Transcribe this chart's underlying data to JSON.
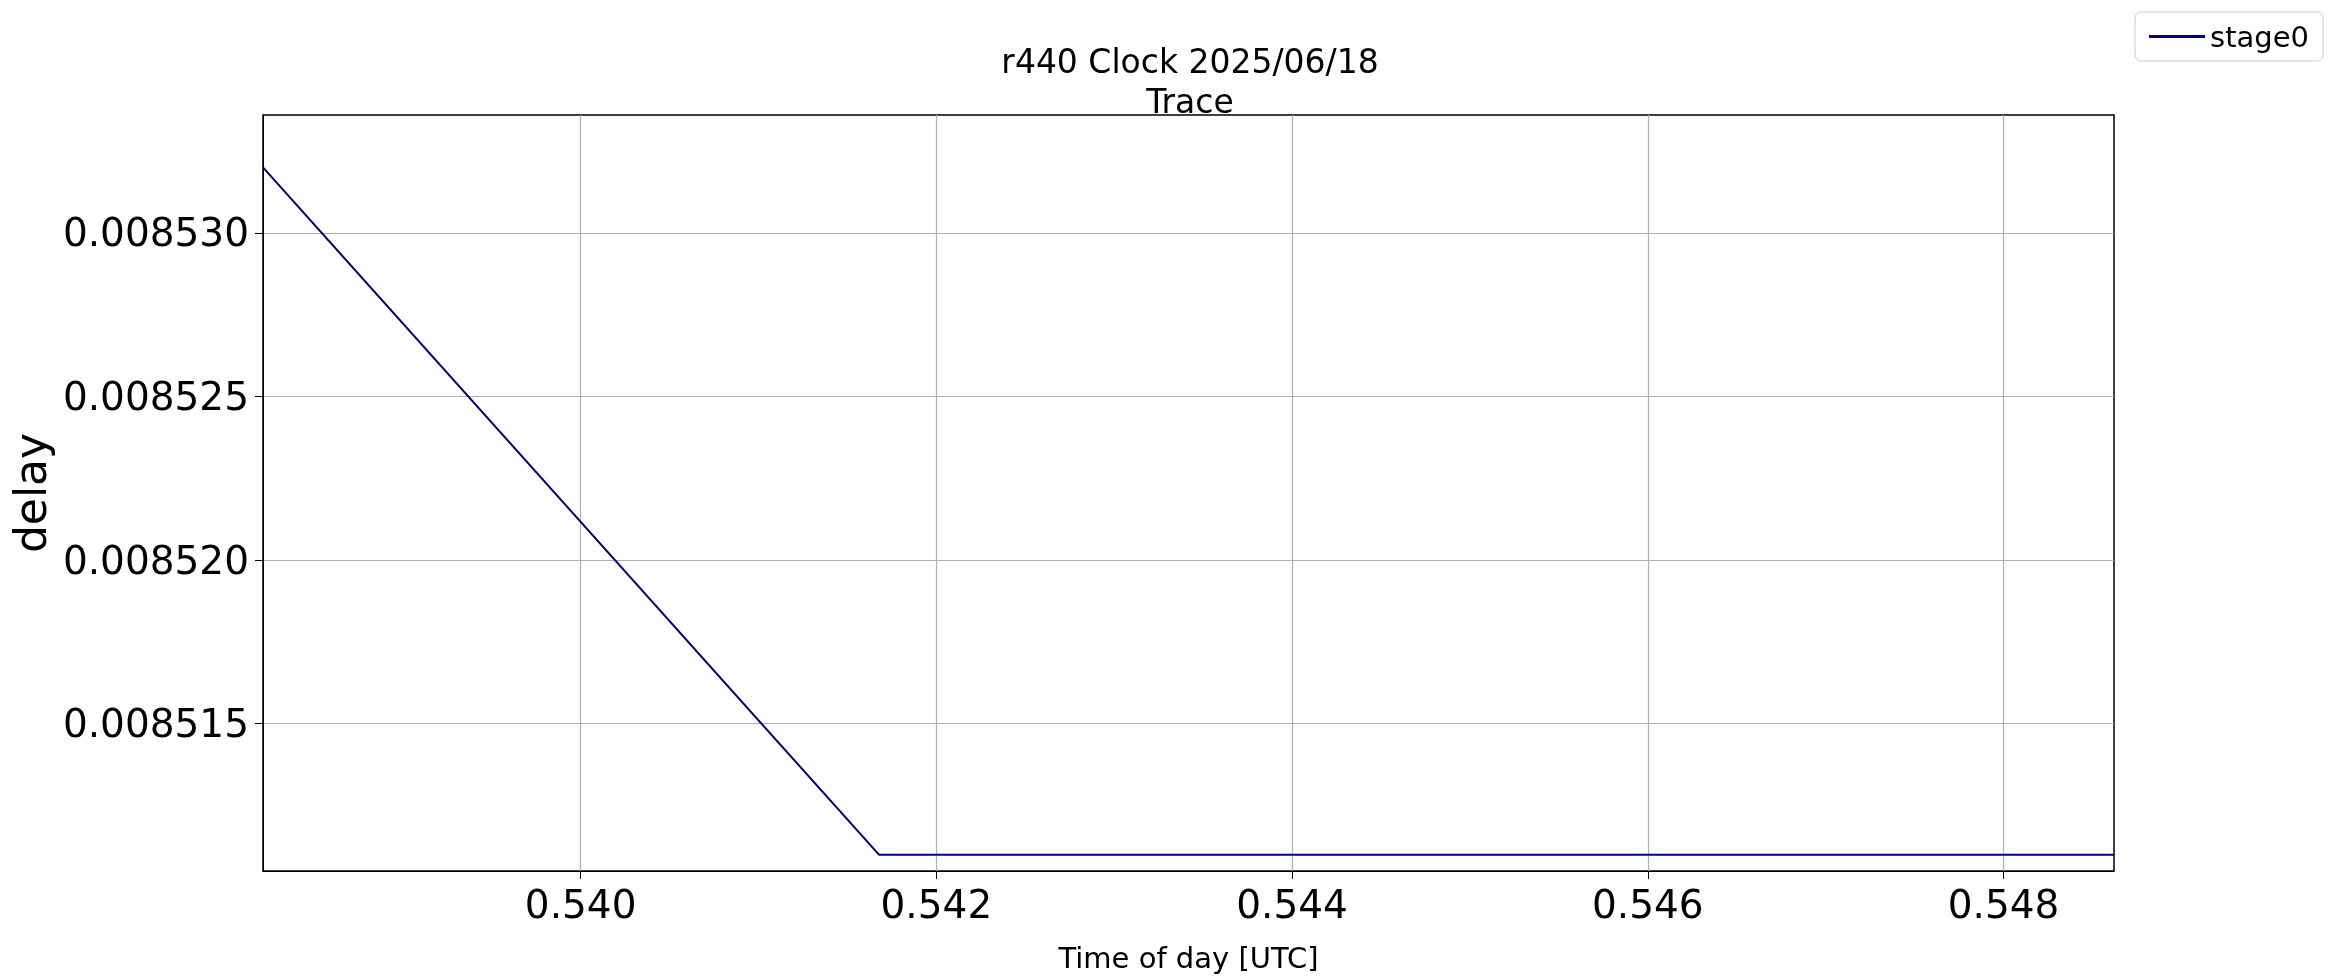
{
  "chart_data": {
    "type": "line",
    "title": "r440 Clock 2025/06/18\nTrace",
    "xlabel": "Time of day [UTC]",
    "ylabel": "delay",
    "x": [
      0.538214,
      0.541677,
      0.548621
    ],
    "series": [
      {
        "name": "stage0",
        "color": "#000080",
        "values": [
          0.008532,
          0.008511,
          0.008511
        ]
      }
    ],
    "xlim": [
      0.538214,
      0.548621
    ],
    "xticks": [
      {
        "value": 0.54,
        "label": "0.540"
      },
      {
        "value": 0.542,
        "label": "0.542"
      },
      {
        "value": 0.544,
        "label": "0.544"
      },
      {
        "value": 0.546,
        "label": "0.546"
      },
      {
        "value": 0.548,
        "label": "0.548"
      }
    ],
    "ylim": [
      0.0085105,
      0.0085336
    ],
    "yticks": [
      {
        "value": 0.008515,
        "label": "0.008515"
      },
      {
        "value": 0.00852,
        "label": "0.008520"
      },
      {
        "value": 0.008525,
        "label": "0.008525"
      },
      {
        "value": 0.00853,
        "label": "0.008530"
      }
    ],
    "grid": true,
    "legend": "top right",
    "marker": "none",
    "line_style": "solid"
  }
}
